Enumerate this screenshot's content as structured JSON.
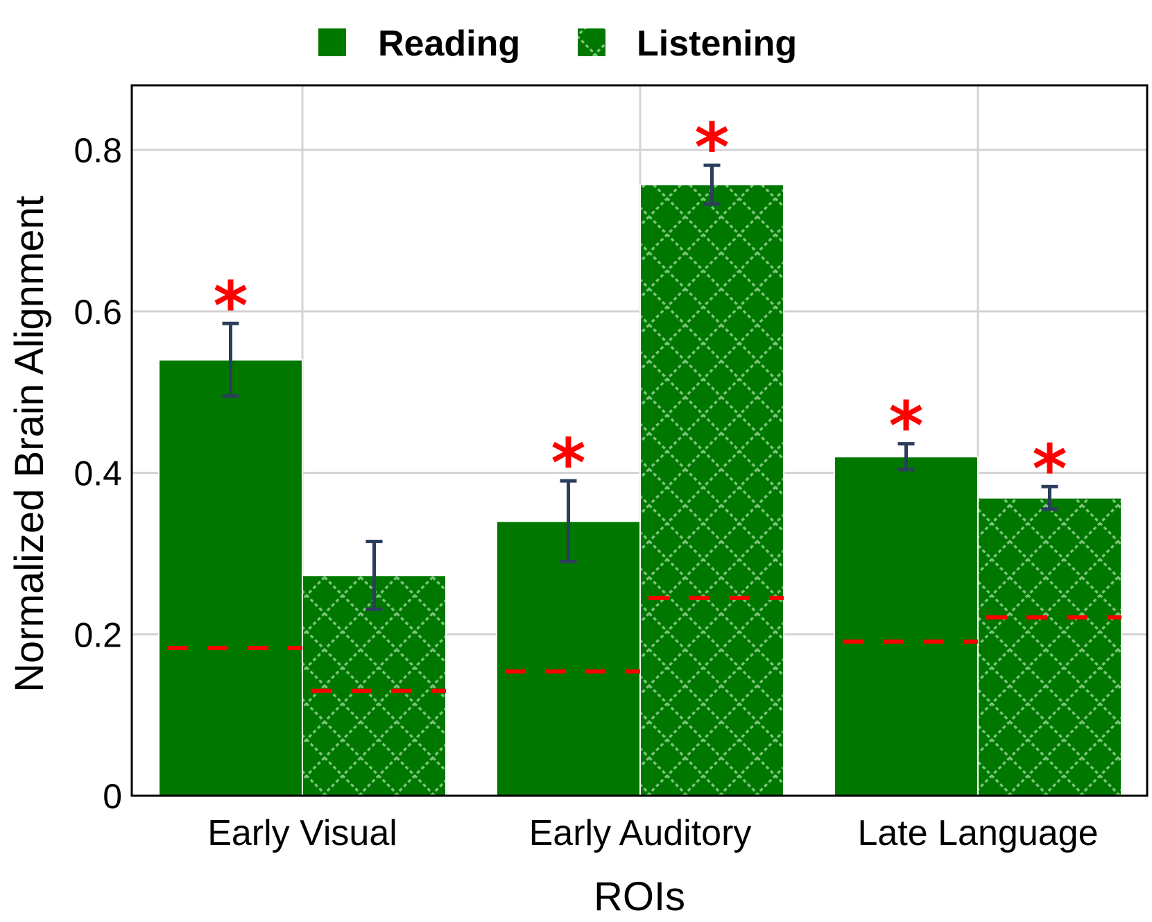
{
  "chart_data": {
    "type": "bar",
    "categories": [
      "Early Visual",
      "Early Auditory",
      "Late Language"
    ],
    "xlabel": "ROIs",
    "ylabel": "Normalized Brain Alignment",
    "ylim": [
      0,
      0.88
    ],
    "yticks": [
      0,
      0.2,
      0.4,
      0.6,
      0.8
    ],
    "ytick_labels": [
      "0",
      "0.2",
      "0.4",
      "0.6",
      "0.8"
    ],
    "grid": true,
    "legend_position": "top",
    "series": [
      {
        "name": "Reading",
        "pattern": "solid",
        "values": [
          0.54,
          0.34,
          0.42
        ],
        "errors": [
          0.045,
          0.05,
          0.016
        ],
        "baseline": [
          0.183,
          0.154,
          0.191
        ],
        "significant": [
          true,
          true,
          true
        ]
      },
      {
        "name": "Listening",
        "pattern": "crosshatch",
        "values": [
          0.273,
          0.757,
          0.369
        ],
        "errors": [
          0.042,
          0.024,
          0.014
        ],
        "baseline": [
          0.13,
          0.245,
          0.221
        ],
        "significant": [
          false,
          true,
          true
        ]
      }
    ],
    "significance_marker": "*",
    "colors": {
      "bar": "#007800",
      "hatch": "#7bc47b",
      "error_bar": "#2c3e5c",
      "baseline": "#ff0000",
      "star": "#ff0000",
      "grid": "#d3d3d3"
    }
  }
}
